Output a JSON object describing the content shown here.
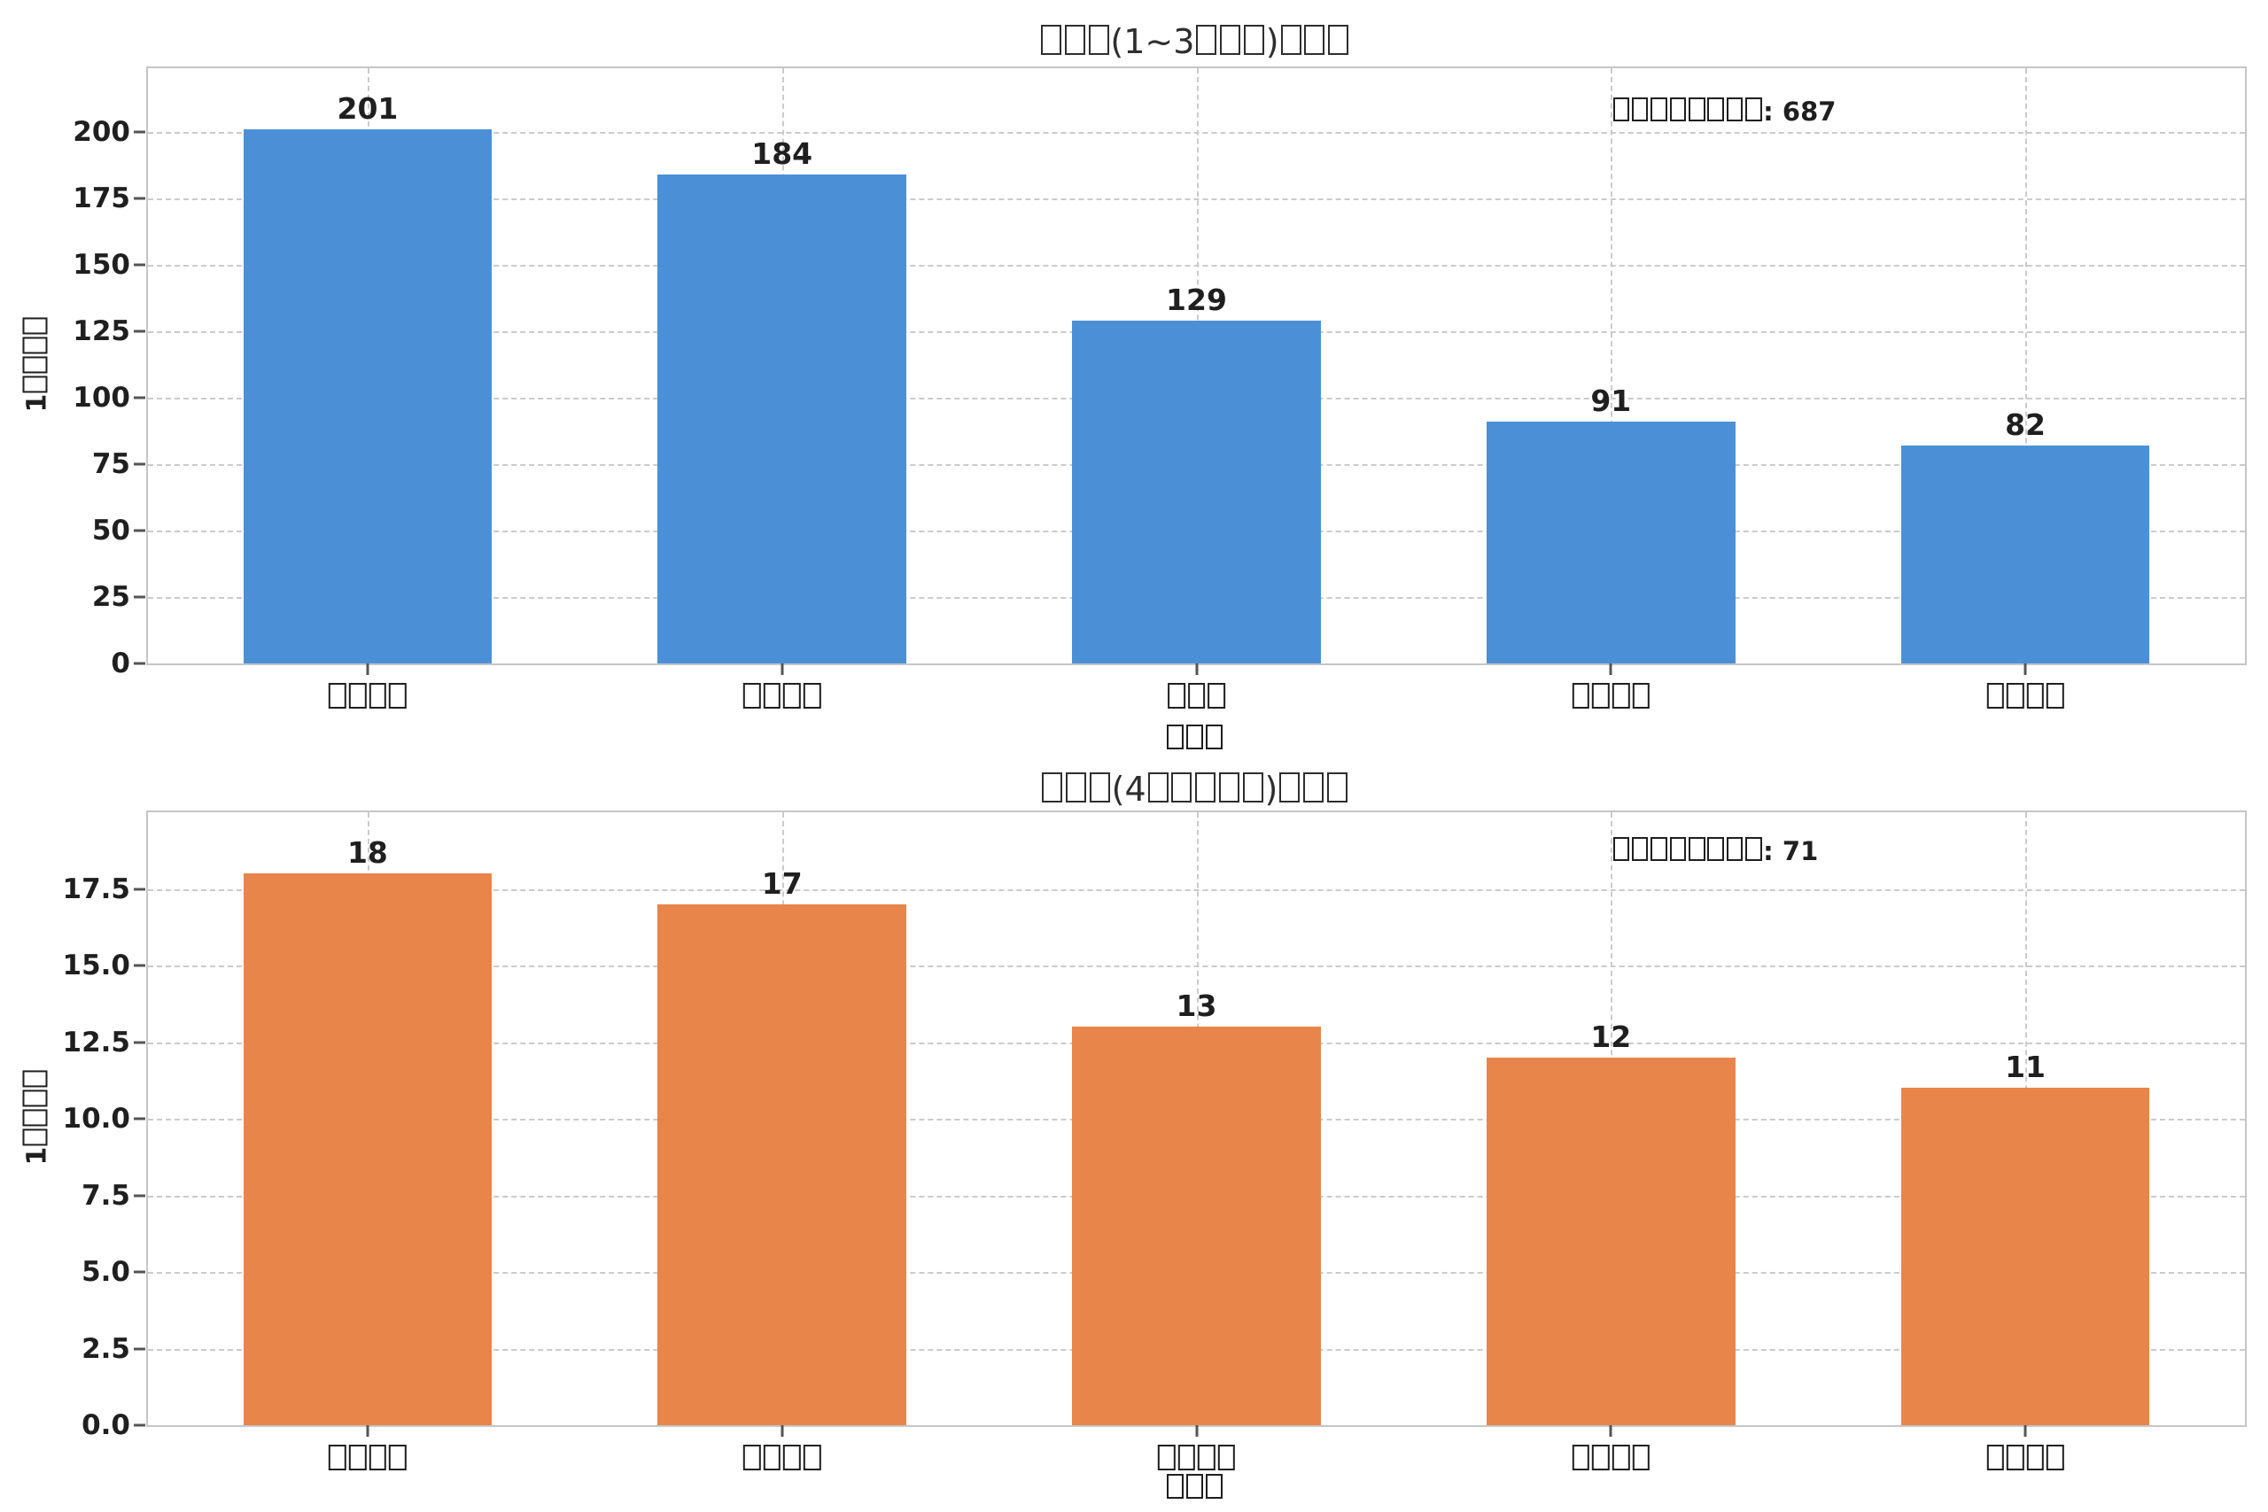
{
  "page": {
    "background_color": "#ffffff",
    "text_color": "#1f1f1f"
  },
  "colors": {
    "top_bar_color": "#4b90d7",
    "bottom_bar_color": "#e8854b",
    "grid_color": "#cbcbcb",
    "spine_color": "#c6c6c6"
  },
  "chart_data": [
    {
      "type": "bar",
      "title": "□□□(1~3□□□)□□□",
      "annotation": "□□□□□□□□: 687",
      "annotation_value": 687,
      "xlabel": "□□□",
      "ylabel": "1□□□□",
      "categories": [
        "□□□□",
        "□□□□",
        "□□□",
        "□□□□",
        "□□□□"
      ],
      "values": [
        201,
        184,
        129,
        91,
        82
      ],
      "ytick_labels": [
        "0",
        "25",
        "50",
        "75",
        "100",
        "125",
        "150",
        "175",
        "200"
      ],
      "ylim": [
        0,
        224
      ],
      "bar_color": "#4b90d7",
      "grid": "dashed",
      "legend_position": "none"
    },
    {
      "type": "bar",
      "title": "□□□(4□□□□□)□□□",
      "annotation": "□□□□□□□□: 71",
      "annotation_value": 71,
      "xlabel": "□□□",
      "ylabel": "1□□□□",
      "categories": [
        "□□□□",
        "□□□□",
        "□□□□",
        "□□□□",
        "□□□□"
      ],
      "values": [
        18,
        17,
        13,
        12,
        11
      ],
      "ytick_labels": [
        "0.0",
        "2.5",
        "5.0",
        "7.5",
        "10.0",
        "12.5",
        "15.0",
        "17.5"
      ],
      "ylim": [
        0,
        20
      ],
      "bar_color": "#e8854b",
      "grid": "dashed",
      "legend_position": "none"
    }
  ]
}
